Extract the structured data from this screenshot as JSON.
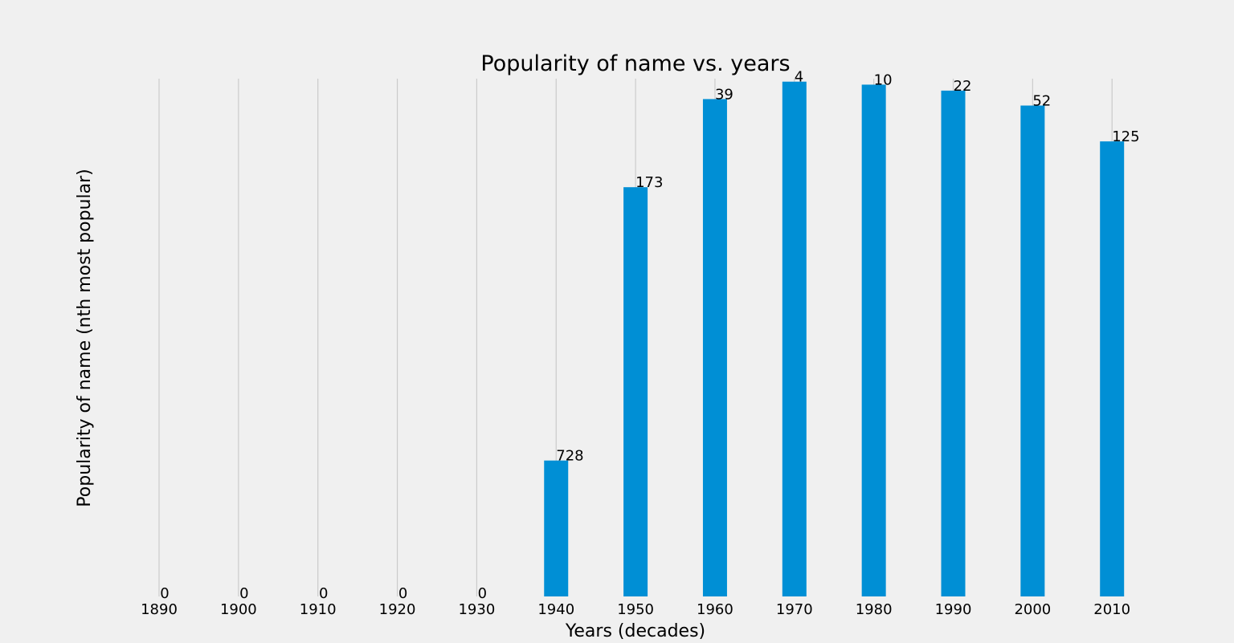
{
  "chart_data": {
    "type": "bar",
    "title": "Popularity of name vs. years",
    "xlabel": "Years (decades)",
    "ylabel": "Popularity of name (nth most popular)",
    "categories": [
      "1890",
      "1900",
      "1910",
      "1920",
      "1930",
      "1940",
      "1950",
      "1960",
      "1970",
      "1980",
      "1990",
      "2000",
      "2010"
    ],
    "rank_labels": [
      "0",
      "0",
      "0",
      "0",
      "0",
      "728",
      "173",
      "39",
      "4",
      "10",
      "22",
      "52",
      "125"
    ],
    "bar_heights": [
      0,
      0,
      0,
      0,
      0,
      273,
      822,
      999,
      1034,
      1028,
      1016,
      986,
      914
    ],
    "ylim": [
      0,
      1040
    ],
    "grid": "vertical",
    "bar_color": "#008fd5",
    "background_color": "#f0f0f0"
  }
}
